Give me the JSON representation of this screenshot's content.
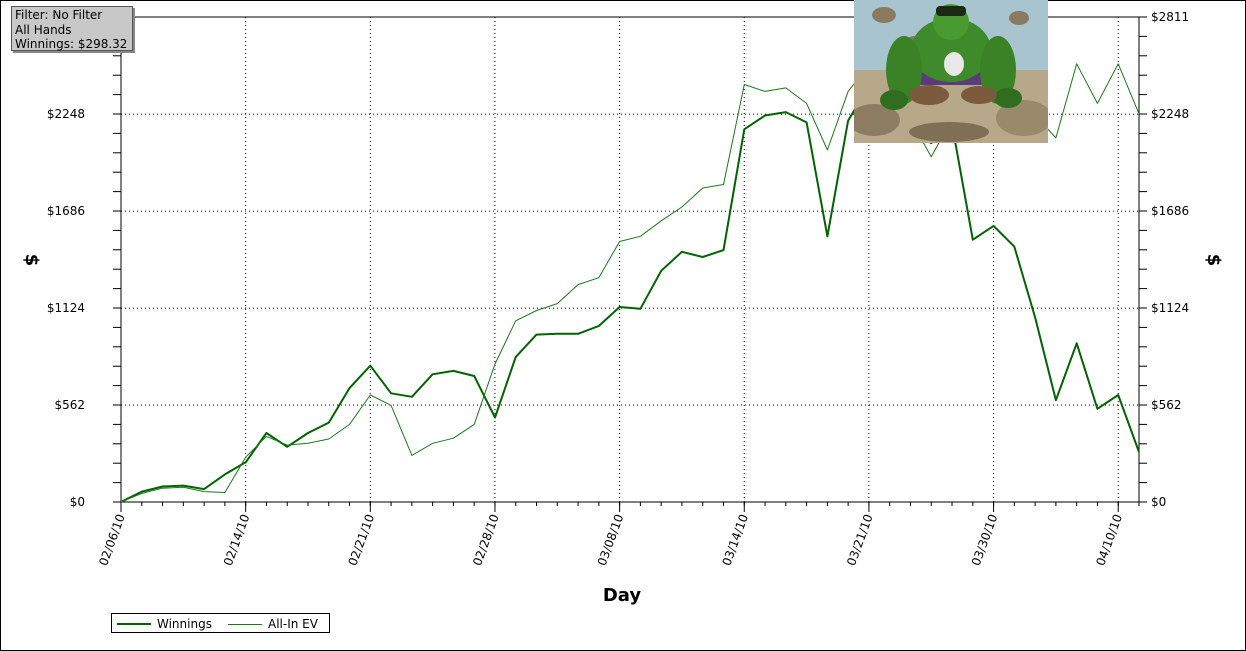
{
  "filter_box": {
    "line1": "Filter: No Filter",
    "line2": "All Hands",
    "line3": "Winnings: $298.32"
  },
  "colors": {
    "winnings": "#006400",
    "allin_ev": "#1a7a1a",
    "grid": "#000000",
    "background": "#ffffff"
  },
  "chart_data": {
    "type": "line",
    "title": "",
    "xlabel": "Day",
    "ylabel": "$",
    "ylabel_right": "$",
    "ylim": [
      0,
      2811
    ],
    "y_ticks": [
      0,
      562,
      1124,
      1686,
      2248,
      2811
    ],
    "y_tick_labels": [
      "$0",
      "$562",
      "$1124",
      "$1686",
      "$2248",
      "$2811"
    ],
    "x_tick_labels": [
      {
        "label": "02/06/10",
        "index": 0
      },
      {
        "label": "02/14/10",
        "index": 6
      },
      {
        "label": "02/21/10",
        "index": 12
      },
      {
        "label": "02/28/10",
        "index": 18
      },
      {
        "label": "03/08/10",
        "index": 24
      },
      {
        "label": "03/14/10",
        "index": 30
      },
      {
        "label": "03/21/10",
        "index": 36
      },
      {
        "label": "03/30/10",
        "index": 42
      },
      {
        "label": "04/10/10",
        "index": 48
      }
    ],
    "x_count": 50,
    "grid": true,
    "legend_position": "bottom-left",
    "series": [
      {
        "name": "Winnings",
        "values": [
          0,
          60,
          90,
          95,
          75,
          160,
          230,
          400,
          320,
          400,
          460,
          660,
          790,
          630,
          610,
          740,
          760,
          730,
          490,
          840,
          970,
          975,
          975,
          1020,
          1130,
          1120,
          1340,
          1450,
          1420,
          1460,
          2160,
          2240,
          2260,
          2200,
          1540,
          2210,
          2410,
          2340,
          2150,
          2080,
          2190,
          1520,
          1600,
          1480,
          1070,
          590,
          920,
          540,
          620,
          290
        ]
      },
      {
        "name": "All-In EV",
        "values": [
          0,
          50,
          80,
          85,
          60,
          55,
          260,
          380,
          330,
          340,
          365,
          450,
          620,
          560,
          270,
          340,
          370,
          450,
          800,
          1050,
          1110,
          1150,
          1260,
          1300,
          1510,
          1540,
          1630,
          1710,
          1820,
          1840,
          2420,
          2380,
          2400,
          2310,
          2040,
          2380,
          2530,
          2430,
          2220,
          2000,
          2220,
          2290,
          2390,
          2360,
          2240,
          2110,
          2540,
          2310,
          2540,
          2250
        ]
      }
    ]
  },
  "legend": {
    "winnings": "Winnings",
    "allin_ev": "All-In EV"
  },
  "image": {
    "subject": "hulk-icon"
  }
}
